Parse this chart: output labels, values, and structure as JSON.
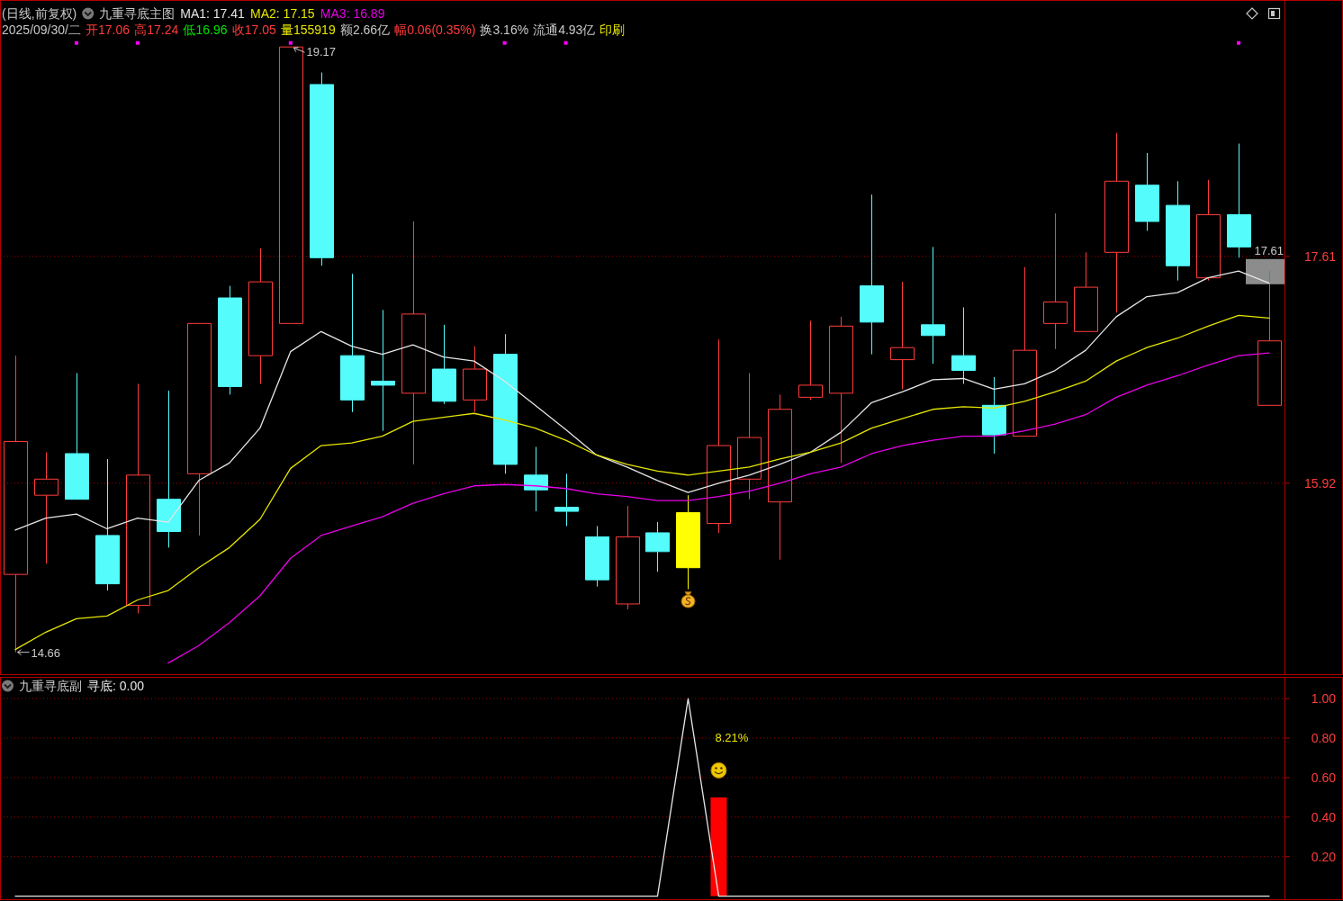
{
  "chart_data": [
    {
      "type": "candlestick",
      "title": "(日线,前复权)",
      "legend_title": "九重寻底主图",
      "categories": [
        null,
        null,
        null,
        null,
        null,
        null,
        null,
        null,
        null,
        null,
        null,
        null,
        null,
        null,
        null,
        null,
        null,
        null,
        null,
        null,
        null,
        null,
        null,
        null,
        null,
        null,
        null,
        null,
        null,
        null,
        null,
        null,
        null,
        null,
        null,
        null,
        null,
        null,
        null,
        null,
        null,
        null
      ],
      "ohlc": [
        [
          15.24,
          16.87,
          14.66,
          16.23
        ],
        [
          15.83,
          16.15,
          15.32,
          15.95
        ],
        [
          16.14,
          16.74,
          15.8,
          15.8
        ],
        [
          15.53,
          16.1,
          15.12,
          15.17
        ],
        [
          15.01,
          16.66,
          14.95,
          15.98
        ],
        [
          15.8,
          16.61,
          15.44,
          15.56
        ],
        [
          15.99,
          17.11,
          15.53,
          17.11
        ],
        [
          17.3,
          17.39,
          16.58,
          16.64
        ],
        [
          16.87,
          17.67,
          16.66,
          17.42
        ],
        [
          17.11,
          19.17,
          17.11,
          19.17
        ],
        [
          18.89,
          18.98,
          17.54,
          17.6
        ],
        [
          16.87,
          17.48,
          16.45,
          16.54
        ],
        [
          16.68,
          17.21,
          16.31,
          16.65
        ],
        [
          16.59,
          17.87,
          16.06,
          17.18
        ],
        [
          16.77,
          17.1,
          16.51,
          16.53
        ],
        [
          16.54,
          16.94,
          16.45,
          16.77
        ],
        [
          16.88,
          17.03,
          15.99,
          16.06
        ],
        [
          15.98,
          16.19,
          15.71,
          15.87
        ],
        [
          15.74,
          15.99,
          15.6,
          15.71
        ],
        [
          15.52,
          15.6,
          15.15,
          15.2
        ],
        [
          15.02,
          15.75,
          14.98,
          15.52
        ],
        [
          15.55,
          15.63,
          15.26,
          15.41
        ],
        [
          15.7,
          15.83,
          15.13,
          15.29
        ],
        [
          15.62,
          16.99,
          15.55,
          16.2
        ],
        [
          15.95,
          16.74,
          15.8,
          16.26
        ],
        [
          15.78,
          16.58,
          15.35,
          16.47
        ],
        [
          16.56,
          17.13,
          16.54,
          16.65
        ],
        [
          16.59,
          17.16,
          16.07,
          17.09
        ],
        [
          17.39,
          18.07,
          16.88,
          17.12
        ],
        [
          16.84,
          17.42,
          16.62,
          16.93
        ],
        [
          17.1,
          17.68,
          16.81,
          17.02
        ],
        [
          16.87,
          17.23,
          16.66,
          16.76
        ],
        [
          16.5,
          16.71,
          16.14,
          16.28
        ],
        [
          16.27,
          17.53,
          16.27,
          16.91
        ],
        [
          17.11,
          17.93,
          16.92,
          17.27
        ],
        [
          17.05,
          17.64,
          17.05,
          17.38
        ],
        [
          17.64,
          18.53,
          17.19,
          18.17
        ],
        [
          18.14,
          18.38,
          17.8,
          17.87
        ],
        [
          17.99,
          18.17,
          17.43,
          17.54
        ],
        [
          17.45,
          18.18,
          17.43,
          17.92
        ],
        [
          17.92,
          18.45,
          17.6,
          17.68
        ],
        [
          16.5,
          17.5,
          16.5,
          16.98
        ]
      ],
      "colors": [
        "#ff3c3c",
        "#ff3c3c",
        "#54fcfc",
        "#54fcfc",
        "#ff3c3c",
        "#54fcfc",
        "#ff3c3c",
        "#54fcfc",
        "#ff3c3c",
        "#ff3c3c",
        "#54fcfc",
        "#54fcfc",
        "#54fcfc",
        "#ff3c3c",
        "#54fcfc",
        "#ff3c3c",
        "#54fcfc",
        "#54fcfc",
        "#54fcfc",
        "#54fcfc",
        "#ff3c3c",
        "#54fcfc",
        "#ffff00",
        "#ff3c3c",
        "#ff3c3c",
        "#ff3c3c",
        "#ff3c3c",
        "#ff3c3c",
        "#54fcfc",
        "#ff3c3c",
        "#54fcfc",
        "#54fcfc",
        "#54fcfc",
        "#ff3c3c",
        "#ff3c3c",
        "#ff3c3c",
        "#ff3c3c",
        "#54fcfc",
        "#54fcfc",
        "#ff3c3c",
        "#54fcfc",
        "#ff3c3c"
      ],
      "series": [
        {
          "name": "MA1: 17.41",
          "type": "line",
          "color": "#e6e6e6",
          "values": [
            15.57,
            15.66,
            15.69,
            15.58,
            15.66,
            15.63,
            15.94,
            16.07,
            16.33,
            16.9,
            17.05,
            16.94,
            16.88,
            16.95,
            16.86,
            16.83,
            16.68,
            16.5,
            16.32,
            16.13,
            16.04,
            15.94,
            15.85,
            15.92,
            15.98,
            16.06,
            16.15,
            16.3,
            16.52,
            16.6,
            16.69,
            16.7,
            16.62,
            16.66,
            16.76,
            16.91,
            17.16,
            17.31,
            17.34,
            17.45,
            17.5,
            17.41
          ]
        },
        {
          "name": "MA2: 17.15",
          "type": "line",
          "color": "#e6e600",
          "values": [
            14.68,
            14.81,
            14.91,
            14.93,
            15.05,
            15.12,
            15.29,
            15.44,
            15.65,
            16.03,
            16.2,
            16.22,
            16.27,
            16.38,
            16.41,
            16.44,
            16.39,
            16.33,
            16.24,
            16.13,
            16.06,
            16.01,
            15.98,
            16.01,
            16.04,
            16.1,
            16.15,
            16.22,
            16.33,
            16.4,
            16.47,
            16.49,
            16.48,
            16.53,
            16.6,
            16.68,
            16.83,
            16.93,
            17.0,
            17.09,
            17.17,
            17.15
          ]
        },
        {
          "name": "MA3: 16.89",
          "type": "line",
          "color": "#e600e6",
          "values": [
            null,
            null,
            null,
            null,
            null,
            14.58,
            14.71,
            14.88,
            15.08,
            15.36,
            15.53,
            15.6,
            15.67,
            15.77,
            15.84,
            15.9,
            15.91,
            15.9,
            15.88,
            15.84,
            15.82,
            15.79,
            15.79,
            15.82,
            15.86,
            15.92,
            15.99,
            16.04,
            16.14,
            16.2,
            16.24,
            16.27,
            16.27,
            16.31,
            16.36,
            16.43,
            16.56,
            16.65,
            16.72,
            16.8,
            16.87,
            16.89
          ]
        },
        {
          "type": "scatter",
          "color": "#ff00ff",
          "marker": "square",
          "values": [
            null,
            null,
            19.2,
            null,
            19.2,
            null,
            null,
            null,
            null,
            19.2,
            null,
            null,
            null,
            null,
            null,
            null,
            19.2,
            null,
            19.2,
            null,
            null,
            null,
            null,
            null,
            null,
            null,
            null,
            null,
            null,
            null,
            null,
            null,
            null,
            null,
            null,
            null,
            null,
            null,
            null,
            null,
            19.2,
            null
          ]
        }
      ],
      "ylim": [
        14.49,
        19.52
      ],
      "yticks": [
        15.92,
        17.61
      ],
      "grid": "y",
      "tick_labels": "y",
      "annotations": [
        "19.17",
        "14.66",
        "17.61",
        "2025/09/30/二",
        "开17.06",
        "高17.24",
        "低16.96",
        "收17.05",
        "量155919",
        "额2.66亿",
        "幅0.06(0.35%)",
        "换3.16%",
        "流通4.93亿",
        "印刷"
      ]
    },
    {
      "type": "line",
      "legend_title": "九重寻底副",
      "categories": [
        null,
        null,
        null,
        null,
        null,
        null,
        null,
        null,
        null,
        null,
        null,
        null,
        null,
        null,
        null,
        null,
        null,
        null,
        null,
        null,
        null,
        null,
        null,
        null,
        null,
        null,
        null,
        null,
        null,
        null,
        null,
        null,
        null,
        null,
        null,
        null,
        null,
        null,
        null,
        null,
        null,
        null
      ],
      "series": [
        {
          "name": "寻底: 0.00",
          "type": "line",
          "color": "#e6e6e6",
          "values": [
            0,
            0,
            0,
            0,
            0,
            0,
            0,
            0,
            0,
            0,
            0,
            0,
            0,
            0,
            0,
            0,
            0,
            0,
            0,
            0,
            0,
            0,
            1,
            0,
            0,
            0,
            0,
            0,
            0,
            0,
            0,
            0,
            0,
            0,
            0,
            0,
            0,
            0,
            0,
            0,
            0,
            0
          ]
        },
        {
          "type": "bar",
          "color": "#ff0000",
          "values": [
            null,
            null,
            null,
            null,
            null,
            null,
            null,
            null,
            null,
            null,
            null,
            null,
            null,
            null,
            null,
            null,
            null,
            null,
            null,
            null,
            null,
            null,
            null,
            0.5,
            null,
            null,
            null,
            null,
            null,
            null,
            null,
            null,
            null,
            null,
            null,
            null,
            null,
            null,
            null,
            null,
            null,
            null
          ]
        }
      ],
      "ylim": [
        -0.02,
        1.11
      ],
      "yticks": [
        {
          "value": 0.2,
          "label": "0.20"
        },
        {
          "value": 0.4,
          "label": "0.40"
        },
        {
          "value": 0.6,
          "label": "0.60"
        },
        {
          "value": 0.8,
          "label": "0.80"
        },
        {
          "value": 1,
          "label": "1.00"
        }
      ],
      "grid": "y",
      "tick_labels": "y",
      "annotations": [
        "8.21%"
      ]
    }
  ]
}
